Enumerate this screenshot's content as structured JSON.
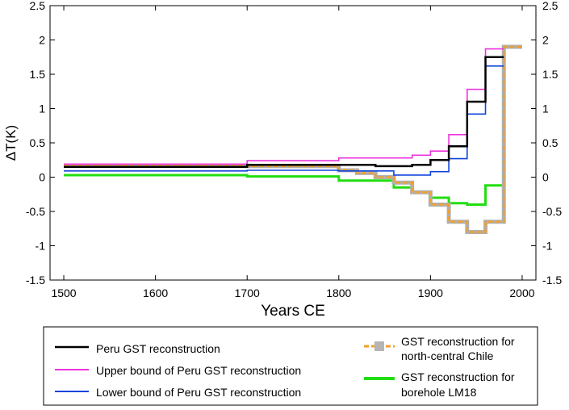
{
  "chart_data": {
    "type": "line",
    "title": "",
    "xlabel": "Years CE",
    "ylabel": "ΔT(K)",
    "xlim": [
      1485,
      2015
    ],
    "ylim": [
      -1.5,
      2.5
    ],
    "xticks": [
      1500,
      1600,
      1700,
      1800,
      1900,
      2000
    ],
    "yticks": [
      2.5,
      2,
      1.5,
      1,
      0.5,
      0,
      -0.5,
      -1,
      -1.5
    ],
    "ytick_labels": [
      "2.5",
      "2",
      "1.5",
      "1",
      "0.5",
      "0",
      "-0.5",
      "-1",
      "-1.5"
    ],
    "grid": false,
    "legend_position": "bottom",
    "series": [
      {
        "name": "Peru GST reconstruction",
        "color": "#000000",
        "style": "solid",
        "x": [
          1500,
          1700,
          1800,
          1840,
          1880,
          1900,
          1920,
          1940,
          1960,
          1980
        ],
        "y": [
          0.15,
          0.18,
          0.18,
          0.16,
          0.18,
          0.25,
          0.45,
          1.1,
          1.75,
          1.75
        ]
      },
      {
        "name": "Upper bound of Peru GST reconstruction",
        "color": "#ee33dd",
        "style": "solid",
        "x": [
          1500,
          1700,
          1800,
          1880,
          1900,
          1920,
          1940,
          1960,
          1980
        ],
        "y": [
          0.19,
          0.24,
          0.28,
          0.32,
          0.38,
          0.62,
          1.28,
          1.87,
          1.87
        ]
      },
      {
        "name": "Lower bound of Peru GST reconstruction",
        "color": "#1144dd",
        "style": "solid",
        "x": [
          1500,
          1700,
          1800,
          1860,
          1900,
          1920,
          1940,
          1960,
          1980
        ],
        "y": [
          0.09,
          0.1,
          0.09,
          0.03,
          0.08,
          0.27,
          0.92,
          1.62,
          1.62
        ]
      },
      {
        "name": "GST reconstruction for north-central Chile",
        "color": "#f0a030",
        "style": "dashed",
        "x": [
          1500,
          1700,
          1800,
          1820,
          1840,
          1860,
          1880,
          1900,
          1920,
          1940,
          1960,
          1980,
          2000
        ],
        "y": [
          0.17,
          0.16,
          0.1,
          0.06,
          0.0,
          -0.08,
          -0.22,
          -0.4,
          -0.65,
          -0.8,
          -0.65,
          1.9,
          1.9
        ]
      },
      {
        "name": "GST reconstruction for borehole LM18",
        "color": "#22dd11",
        "style": "solid",
        "x": [
          1500,
          1700,
          1800,
          1860,
          1880,
          1900,
          1920,
          1940,
          1960,
          1980
        ],
        "y": [
          0.03,
          0.01,
          -0.05,
          -0.15,
          -0.22,
          -0.3,
          -0.38,
          -0.4,
          -0.12,
          -0.12
        ]
      }
    ]
  },
  "legend": [
    {
      "label": "Peru GST reconstruction",
      "color": "#000000",
      "style": "solid"
    },
    {
      "label": "Upper bound of Peru GST reconstruction",
      "color": "#ee33dd",
      "style": "solid"
    },
    {
      "label": "Lower bound of Peru GST reconstruction",
      "color": "#1144dd",
      "style": "solid"
    },
    {
      "label_line1": "GST reconstruction for",
      "label_line2": "north-central Chile",
      "color": "#f0a030",
      "style": "dashed"
    },
    {
      "label_line1": "GST reconstruction for",
      "label_line2": "borehole LM18",
      "color": "#22dd11",
      "style": "solid"
    }
  ]
}
